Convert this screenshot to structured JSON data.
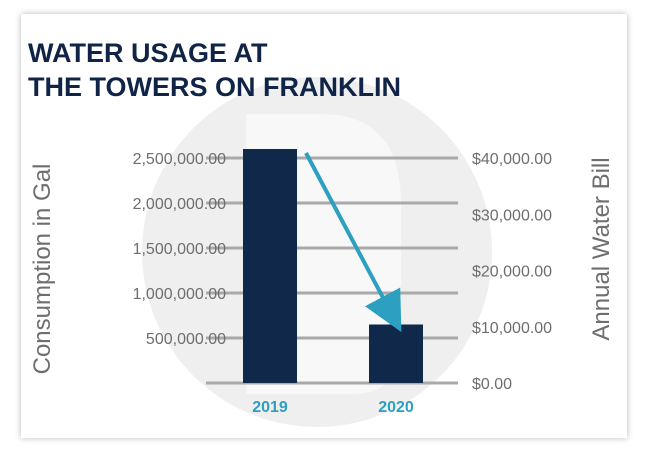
{
  "colors": {
    "title": "#0f2446",
    "bar": "#10284a",
    "arrow": "#2d9fc0",
    "category_label": "#2d9fc0",
    "grid": "#a9a9a9",
    "text": "#6e6e6e",
    "watermark": "#efefef"
  },
  "watermark_icon": "logo-watermark-icon",
  "chart_data": {
    "type": "bar",
    "title_lines": [
      "WATER USAGE AT",
      "THE TOWERS ON FRANKLIN"
    ],
    "categories": [
      "2019",
      "2020"
    ],
    "series": [
      {
        "values": [
          2600000,
          650000
        ]
      }
    ],
    "ylabel": "Consumption in Gal",
    "ylabel_right": "Annual Water Bill",
    "ylim": [
      0,
      2500000
    ],
    "ylim_right": [
      0,
      40000
    ],
    "yticks": [
      "2,500,000.00",
      "2,000,000.00",
      "1,500,000.00",
      "1,000,000.00",
      "500,000.00"
    ],
    "yticks_right": [
      "$40,000.00",
      "$30,000.00",
      "$20,000.00",
      "$10,000.00",
      "$0.00"
    ],
    "grid": true,
    "annotation": "downward arrow from 2019 bar to 2020 bar"
  }
}
